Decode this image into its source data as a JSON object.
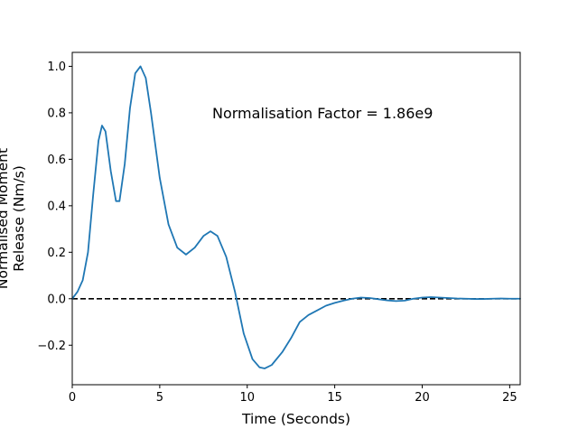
{
  "chart_data": {
    "type": "line",
    "title": "",
    "xlabel": "Time (Seconds)",
    "ylabel_lines": [
      "Normalised Moment",
      "Release (Nm/s)"
    ],
    "xlim": [
      0,
      25.6
    ],
    "ylim": [
      -0.37,
      1.06
    ],
    "xticks": [
      0,
      5,
      10,
      15,
      20,
      25
    ],
    "yticks": [
      -0.2,
      0.0,
      0.2,
      0.4,
      0.6,
      0.8,
      1.0
    ],
    "xtick_labels": [
      "0",
      "5",
      "10",
      "15",
      "20",
      "25"
    ],
    "ytick_labels": [
      "−0.2",
      "0.0",
      "0.2",
      "0.4",
      "0.6",
      "0.8",
      "1.0"
    ],
    "grid": false,
    "annotation": "Normalisation Factor = 1.86e9",
    "reference_line": {
      "y": 0.0,
      "style": "dashed",
      "color": "#000000"
    },
    "series": [
      {
        "color": "#1f77b4",
        "x": [
          0,
          0.3,
          0.6,
          0.9,
          1.2,
          1.5,
          1.7,
          1.9,
          2.2,
          2.5,
          2.7,
          3.0,
          3.3,
          3.6,
          3.9,
          4.2,
          4.5,
          5.0,
          5.5,
          6.0,
          6.5,
          7.0,
          7.5,
          7.9,
          8.3,
          8.8,
          9.3,
          9.8,
          10.3,
          10.7,
          11.0,
          11.4,
          12.0,
          12.5,
          13.0,
          13.5,
          14.0,
          14.5,
          15.0,
          15.5,
          16.0,
          16.5,
          17.0,
          17.5,
          18.0,
          18.5,
          19.0,
          19.5,
          20.0,
          20.5,
          21.0,
          21.5,
          22.0,
          22.5,
          23.0,
          23.5,
          24.0,
          24.5,
          25.0,
          25.6
        ],
        "y": [
          0.0,
          0.03,
          0.08,
          0.2,
          0.45,
          0.68,
          0.745,
          0.72,
          0.55,
          0.42,
          0.42,
          0.58,
          0.82,
          0.97,
          1.0,
          0.95,
          0.8,
          0.52,
          0.32,
          0.22,
          0.19,
          0.22,
          0.27,
          0.29,
          0.27,
          0.18,
          0.03,
          -0.15,
          -0.26,
          -0.295,
          -0.3,
          -0.285,
          -0.23,
          -0.17,
          -0.1,
          -0.07,
          -0.05,
          -0.03,
          -0.018,
          -0.008,
          0.0,
          0.005,
          0.003,
          -0.002,
          -0.007,
          -0.01,
          -0.008,
          0.0,
          0.005,
          0.007,
          0.005,
          0.003,
          0.001,
          0.0,
          -0.001,
          -0.001,
          0.0,
          0.001,
          0.0,
          0.0
        ]
      }
    ]
  }
}
